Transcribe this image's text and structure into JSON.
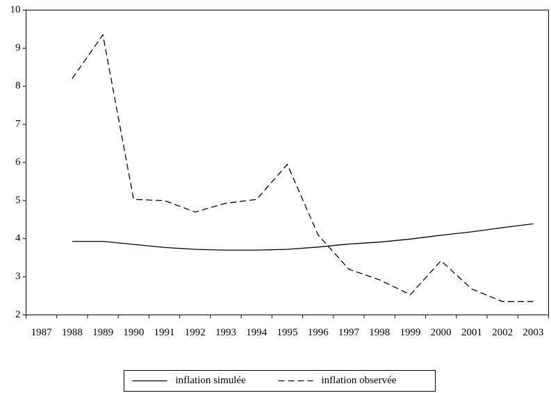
{
  "chart_data": {
    "type": "line",
    "categories": [
      "1987",
      "1988",
      "1989",
      "1990",
      "1991",
      "1992",
      "1993",
      "1994",
      "1995",
      "1996",
      "1997",
      "1998",
      "1999",
      "2000",
      "2001",
      "2002",
      "2003"
    ],
    "series": [
      {
        "name": "inflation simulée",
        "color": "#000000",
        "dash": "solid",
        "values": [
          null,
          3.93,
          3.93,
          3.85,
          3.77,
          3.72,
          3.7,
          3.7,
          3.72,
          3.78,
          3.86,
          3.91,
          3.99,
          4.09,
          4.18,
          4.29,
          4.39
        ]
      },
      {
        "name": "inflation observée",
        "color": "#000000",
        "dash": "dashed",
        "values": [
          null,
          8.2,
          9.35,
          5.03,
          5.0,
          4.7,
          4.93,
          5.03,
          5.95,
          4.1,
          3.2,
          2.92,
          2.53,
          3.42,
          2.68,
          2.35,
          2.35
        ]
      }
    ],
    "ylim": [
      2,
      10
    ],
    "yticks": [
      2,
      3,
      4,
      5,
      6,
      7,
      8,
      9,
      10
    ],
    "grid": false,
    "legend": "bottom"
  }
}
